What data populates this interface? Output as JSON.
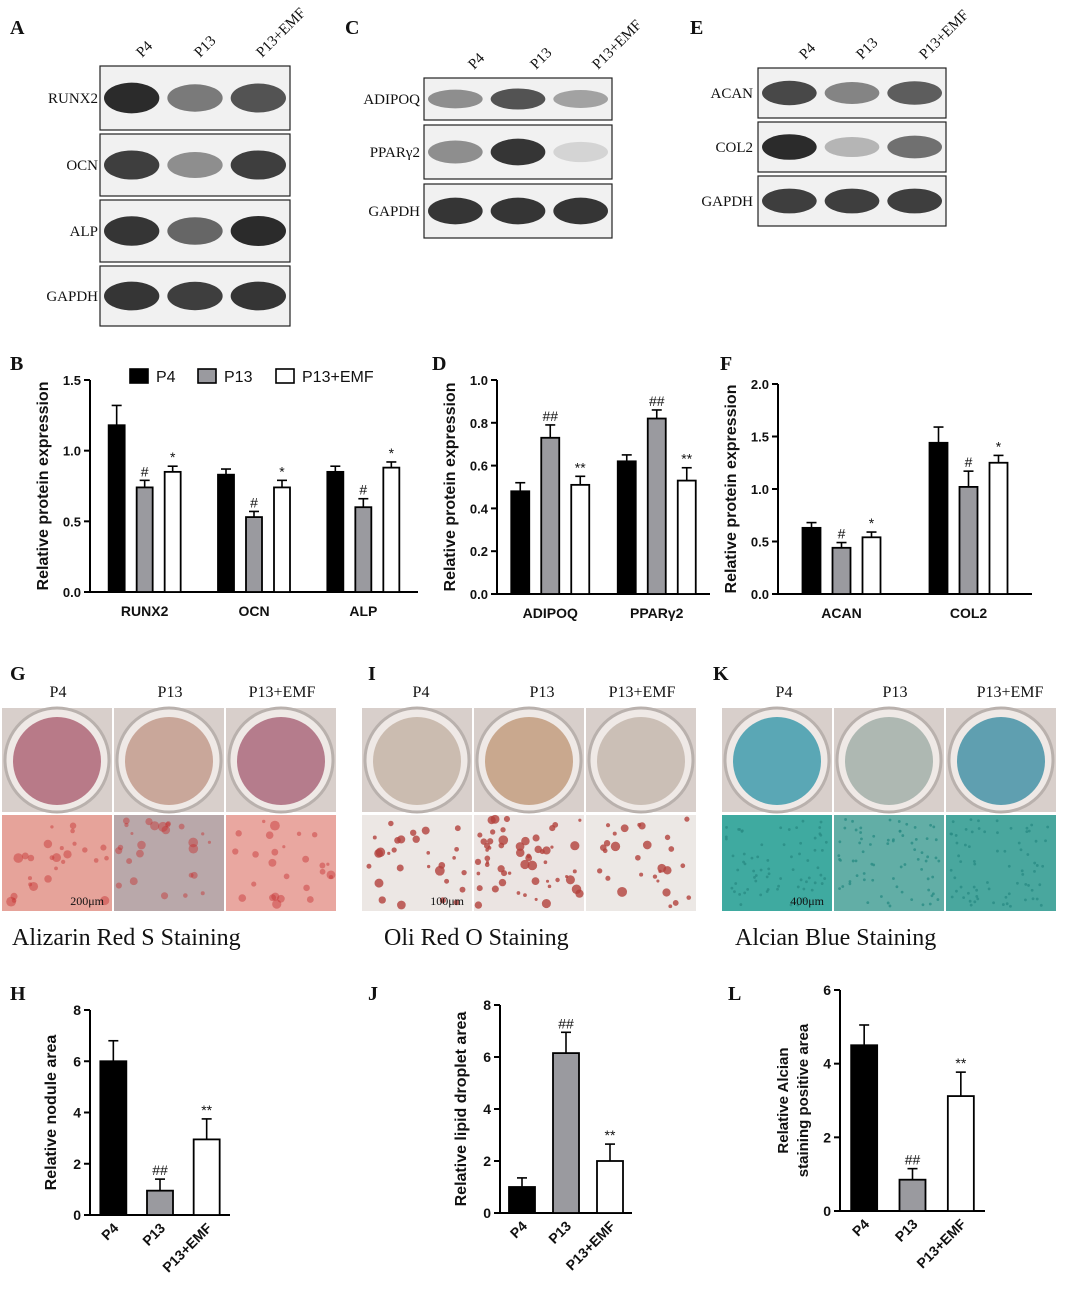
{
  "panel_letters": [
    "A",
    "B",
    "C",
    "D",
    "E",
    "F",
    "G",
    "H",
    "I",
    "J",
    "K",
    "L"
  ],
  "blots": [
    {
      "letter": "A",
      "lanes": [
        "P4",
        "P13",
        "P13+EMF"
      ],
      "rows": [
        {
          "label": "RUNX2",
          "intensity": [
            0.95,
            0.55,
            0.75
          ]
        },
        {
          "label": "OCN",
          "intensity": [
            0.85,
            0.45,
            0.85
          ]
        },
        {
          "label": "ALP",
          "intensity": [
            0.9,
            0.65,
            0.95
          ]
        },
        {
          "label": "GAPDH",
          "intensity": [
            0.9,
            0.85,
            0.9
          ]
        }
      ]
    },
    {
      "letter": "C",
      "lanes": [
        "P4",
        "P13",
        "P13+EMF"
      ],
      "rows": [
        {
          "label": "ADIPOQ",
          "intensity": [
            0.45,
            0.75,
            0.35
          ]
        },
        {
          "label": "PPARγ2",
          "intensity": [
            0.45,
            0.9,
            0.1
          ]
        },
        {
          "label": "GAPDH",
          "intensity": [
            0.9,
            0.9,
            0.9
          ]
        }
      ]
    },
    {
      "letter": "E",
      "lanes": [
        "P4",
        "P13",
        "P13+EMF"
      ],
      "rows": [
        {
          "label": "ACAN",
          "intensity": [
            0.8,
            0.5,
            0.7
          ]
        },
        {
          "label": "COL2",
          "intensity": [
            0.95,
            0.25,
            0.6
          ]
        },
        {
          "label": "GAPDH",
          "intensity": [
            0.85,
            0.85,
            0.85
          ]
        }
      ]
    }
  ],
  "legend": {
    "labels": [
      "P4",
      "P13",
      "P13+EMF"
    ]
  },
  "colors": {
    "P4": "#000000",
    "P13": "#9a9a9f",
    "P13+EMF": "#ffffff"
  },
  "stains": [
    {
      "letter": "G",
      "title": "Alizarin Red S Staining",
      "lanes": [
        "P4",
        "P13",
        "P13+EMF"
      ],
      "scale": "200μm",
      "well_colors": [
        "#b87a88",
        "#c9a79a",
        "#b57c8c"
      ],
      "micro_colors": [
        "#e6a39a",
        "#b9a8aa",
        "#e9a7a0"
      ],
      "dot_color": "#c53030"
    },
    {
      "letter": "I",
      "title": "Oli Red O Staining",
      "lanes": [
        "P4",
        "P13",
        "P13+EMF"
      ],
      "scale": "100μm",
      "well_colors": [
        "#cbbcb0",
        "#c9a88e",
        "#cbbfb6"
      ],
      "micro_colors": [
        "#ece7e4",
        "#ebe4e2",
        "#ece8e5"
      ],
      "dot_color": "#b3413c"
    },
    {
      "letter": "K",
      "title": "Alcian Blue Staining",
      "lanes": [
        "P4",
        "P13",
        "P13+EMF"
      ],
      "scale": "400μm",
      "well_colors": [
        "#5aa7b5",
        "#aeb8b2",
        "#5f9fb0"
      ],
      "micro_colors": [
        "#3faaa0",
        "#62aea6",
        "#49a79e"
      ],
      "dot_color": "#2a8c85"
    }
  ],
  "chart_data": [
    {
      "id": "B",
      "type": "bar",
      "ylabel": "Relative protein expression",
      "categories": [
        "RUNX2",
        "OCN",
        "ALP"
      ],
      "ylim": [
        0,
        1.5
      ],
      "yticks": [
        "0.0",
        "0.5",
        "1.0",
        "1.5"
      ],
      "series": [
        {
          "name": "P4",
          "values": [
            1.18,
            0.83,
            0.85
          ],
          "errors": [
            0.14,
            0.04,
            0.04
          ],
          "marks": [
            "",
            "",
            ""
          ]
        },
        {
          "name": "P13",
          "values": [
            0.74,
            0.53,
            0.6
          ],
          "errors": [
            0.05,
            0.04,
            0.06
          ],
          "marks": [
            "#",
            "#",
            "#"
          ]
        },
        {
          "name": "P13+EMF",
          "values": [
            0.85,
            0.74,
            0.88
          ],
          "errors": [
            0.04,
            0.05,
            0.04
          ],
          "marks": [
            "*",
            "*",
            "*"
          ]
        }
      ]
    },
    {
      "id": "D",
      "type": "bar",
      "ylabel": "Relative protein expression",
      "categories": [
        "ADIPOQ",
        "PPARγ2"
      ],
      "ylim": [
        0,
        1.0
      ],
      "yticks": [
        "0.0",
        "0.2",
        "0.4",
        "0.6",
        "0.8",
        "1.0"
      ],
      "series": [
        {
          "name": "P4",
          "values": [
            0.48,
            0.62
          ],
          "errors": [
            0.04,
            0.03
          ],
          "marks": [
            "",
            ""
          ]
        },
        {
          "name": "P13",
          "values": [
            0.73,
            0.82
          ],
          "errors": [
            0.06,
            0.04
          ],
          "marks": [
            "##",
            "##"
          ]
        },
        {
          "name": "P13+EMF",
          "values": [
            0.51,
            0.53
          ],
          "errors": [
            0.04,
            0.06
          ],
          "marks": [
            "**",
            "**"
          ]
        }
      ]
    },
    {
      "id": "F",
      "type": "bar",
      "ylabel": "Relative protein expression",
      "categories": [
        "ACAN",
        "COL2"
      ],
      "ylim": [
        0,
        2.0
      ],
      "yticks": [
        "0.0",
        "0.5",
        "1.0",
        "1.5",
        "2.0"
      ],
      "series": [
        {
          "name": "P4",
          "values": [
            0.63,
            1.44
          ],
          "errors": [
            0.05,
            0.15
          ],
          "marks": [
            "",
            ""
          ]
        },
        {
          "name": "P13",
          "values": [
            0.44,
            1.02
          ],
          "errors": [
            0.05,
            0.15
          ],
          "marks": [
            "#",
            "#"
          ]
        },
        {
          "name": "P13+EMF",
          "values": [
            0.54,
            1.25
          ],
          "errors": [
            0.05,
            0.07
          ],
          "marks": [
            "*",
            "*"
          ]
        }
      ]
    },
    {
      "id": "H",
      "type": "bar",
      "ylabel": "Relative nodule area",
      "categories": [
        "P4",
        "P13",
        "P13+EMF"
      ],
      "ylim": [
        0,
        8
      ],
      "yticks": [
        "0",
        "2",
        "4",
        "6",
        "8"
      ],
      "values": [
        6.0,
        0.95,
        2.95
      ],
      "errors": [
        0.8,
        0.45,
        0.8
      ],
      "marks": [
        "",
        "##",
        "**"
      ]
    },
    {
      "id": "J",
      "type": "bar",
      "ylabel": "Relative lipid droplet area",
      "categories": [
        "P4",
        "P13",
        "P13+EMF"
      ],
      "ylim": [
        0,
        8
      ],
      "yticks": [
        "0",
        "2",
        "4",
        "6",
        "8"
      ],
      "values": [
        1.0,
        6.15,
        2.0
      ],
      "errors": [
        0.35,
        0.8,
        0.65
      ],
      "marks": [
        "",
        "##",
        "**"
      ]
    },
    {
      "id": "L",
      "type": "bar",
      "ylabel": [
        "Relative Alcian",
        "staining positive area"
      ],
      "categories": [
        "P4",
        "P13",
        "P13+EMF"
      ],
      "ylim": [
        0,
        6
      ],
      "yticks": [
        "0",
        "2",
        "4",
        "6"
      ],
      "values": [
        4.5,
        0.85,
        3.12
      ],
      "errors": [
        0.55,
        0.3,
        0.65
      ],
      "marks": [
        "",
        "##",
        "**"
      ]
    }
  ]
}
